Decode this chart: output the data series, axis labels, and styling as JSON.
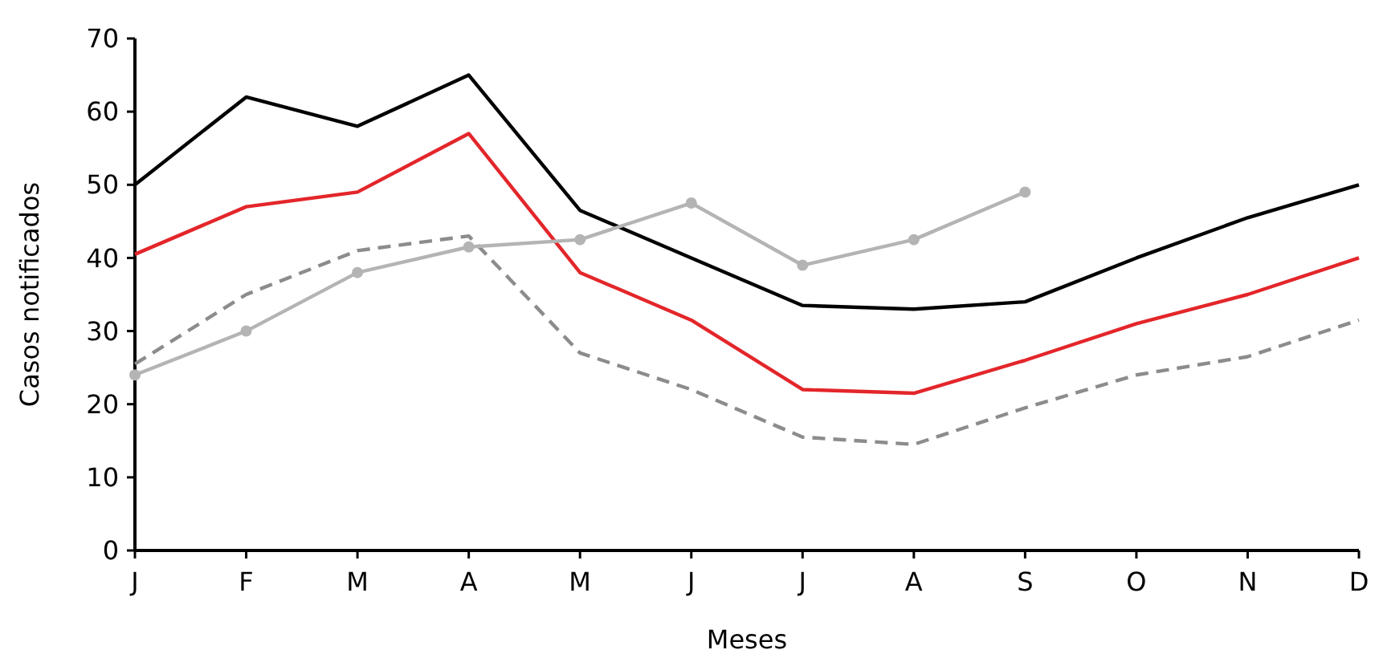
{
  "chart_data": {
    "type": "line",
    "xlabel": "Meses",
    "ylabel": "Casos notificados",
    "categories": [
      "J",
      "F",
      "M",
      "A",
      "M",
      "J",
      "J",
      "A",
      "S",
      "O",
      "N",
      "D"
    ],
    "ylim": [
      0,
      70
    ],
    "yticks": [
      0,
      10,
      20,
      30,
      40,
      50,
      60,
      70
    ],
    "series": [
      {
        "color": "#000000",
        "line_style": "solid",
        "marker": "none",
        "values": [
          50,
          62,
          58,
          65,
          46.5,
          40,
          33.5,
          33,
          34,
          40,
          45.5,
          50
        ]
      },
      {
        "color": "#e3262a",
        "line_style": "solid",
        "marker": "none",
        "values": [
          40.5,
          47,
          49,
          57,
          38,
          31.5,
          22,
          21.5,
          26,
          31,
          35,
          40
        ]
      },
      {
        "color": "#8c8c8c",
        "line_style": "dashed",
        "marker": "none",
        "values": [
          25.5,
          35,
          41,
          43,
          27,
          22,
          15.5,
          14.5,
          19.5,
          24,
          26.5,
          31.5
        ]
      },
      {
        "color": "#b4b4b4",
        "line_style": "solid",
        "marker": "circle",
        "values": [
          24,
          30,
          38,
          41.5,
          42.5,
          47.5,
          39,
          42.5,
          49,
          null,
          null,
          null
        ]
      }
    ]
  }
}
